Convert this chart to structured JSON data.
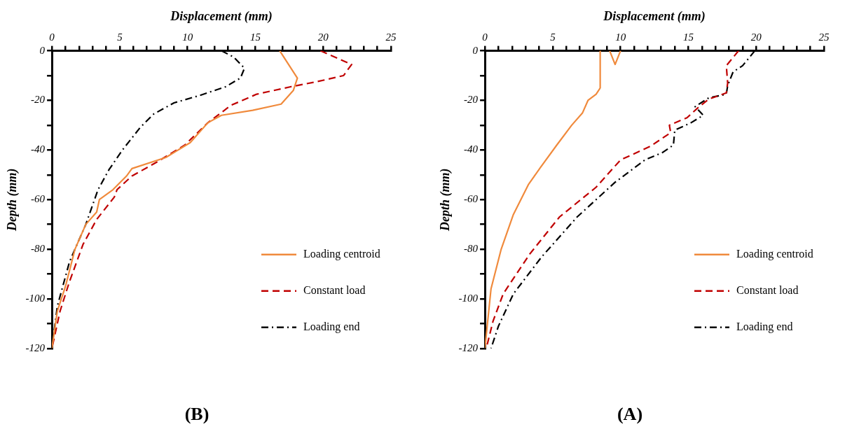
{
  "chart_data": [
    {
      "type": "line",
      "title": "(B)",
      "xlabel": "Displacement (mm)",
      "ylabel": "Depth (mm)",
      "xlim": [
        0,
        25
      ],
      "xticks": [
        0,
        {
          "value": 1,
          "label": null
        },
        {
          "value": 2,
          "label": null
        },
        {
          "value": 3,
          "label": null
        },
        {
          "value": 4,
          "label": null
        },
        5,
        {
          "value": 6,
          "label": null
        },
        {
          "value": 7,
          "label": null
        },
        {
          "value": 8,
          "label": null
        },
        {
          "value": 9,
          "label": null
        },
        10,
        {
          "value": 11,
          "label": null
        },
        {
          "value": 12,
          "label": null
        },
        {
          "value": 13,
          "label": null
        },
        {
          "value": 14,
          "label": null
        },
        15,
        {
          "value": 16,
          "label": null
        },
        {
          "value": 17,
          "label": null
        },
        {
          "value": 18,
          "label": null
        },
        {
          "value": 19,
          "label": null
        },
        20,
        {
          "value": 21,
          "label": null
        },
        {
          "value": 22,
          "label": null
        },
        {
          "value": 23,
          "label": null
        },
        {
          "value": 24,
          "label": null
        },
        25
      ],
      "ylim": [
        -120,
        0
      ],
      "yticks": [
        -120,
        {
          "value": -110,
          "label": null
        },
        -100,
        {
          "value": -90,
          "label": null
        },
        -80,
        {
          "value": -70,
          "label": null
        },
        -60,
        {
          "value": -50,
          "label": null
        },
        -40,
        {
          "value": -30,
          "label": null
        },
        -20,
        {
          "value": -10,
          "label": null
        },
        0
      ],
      "grid": false,
      "legend": "bottom right",
      "marker": "none",
      "series": [
        {
          "name": "Loading centroid",
          "color": "#f08a3c",
          "line_style": "solid",
          "x": [
            16.8,
            18.1,
            17.8,
            16.9,
            14.8,
            12.5,
            11.5,
            10.2,
            8.4,
            5.9,
            5.5,
            4.5,
            3.5,
            3.3,
            2.5,
            1.7,
            1.0,
            0.4,
            0
          ],
          "values": [
            0,
            -11,
            -16,
            -21.5,
            -24,
            -26,
            -29,
            -37,
            -43,
            -47.5,
            -50.5,
            -56,
            -60,
            -65,
            -70,
            -80,
            -95,
            -105,
            -120
          ]
        },
        {
          "name": "Constant load",
          "color": "#c00000",
          "line_style": "dashed",
          "x": [
            19.8,
            22.1,
            21.5,
            19.5,
            17.6,
            15.1,
            13.2,
            11.5,
            9.8,
            7.7,
            5.9,
            4.8,
            4.6,
            3.3,
            2.3,
            1.3,
            0.6,
            0
          ],
          "values": [
            0,
            -5.5,
            -10,
            -12.5,
            -14.5,
            -17.5,
            -22,
            -29,
            -38,
            -45,
            -50.5,
            -56,
            -59,
            -68,
            -78,
            -93,
            -105,
            -120
          ]
        },
        {
          "name": "Loading end",
          "color": "#000000",
          "line_style": "dashdot",
          "x": [
            12.5,
            13.4,
            14.2,
            13.9,
            12.8,
            10.9,
            9.0,
            7.5,
            6.5,
            5.2,
            4.2,
            3.4,
            2.5,
            1.3,
            0.4,
            0
          ],
          "values": [
            0,
            -2.5,
            -7,
            -11,
            -14.5,
            -18,
            -21,
            -25.5,
            -31,
            -40,
            -48,
            -56,
            -70,
            -85,
            -103,
            -120
          ]
        }
      ]
    },
    {
      "type": "line",
      "title": "(A)",
      "xlabel": "Displacement (mm)",
      "ylabel": "Depth (mm)",
      "xlim": [
        0,
        25
      ],
      "xticks": [
        0,
        {
          "value": 1,
          "label": null
        },
        {
          "value": 2,
          "label": null
        },
        {
          "value": 3,
          "label": null
        },
        {
          "value": 4,
          "label": null
        },
        5,
        {
          "value": 6,
          "label": null
        },
        {
          "value": 7,
          "label": null
        },
        {
          "value": 8,
          "label": null
        },
        {
          "value": 9,
          "label": null
        },
        10,
        {
          "value": 11,
          "label": null
        },
        {
          "value": 12,
          "label": null
        },
        {
          "value": 13,
          "label": null
        },
        {
          "value": 14,
          "label": null
        },
        15,
        {
          "value": 16,
          "label": null
        },
        {
          "value": 17,
          "label": null
        },
        {
          "value": 18,
          "label": null
        },
        {
          "value": 19,
          "label": null
        },
        20,
        {
          "value": 21,
          "label": null
        },
        {
          "value": 22,
          "label": null
        },
        {
          "value": 23,
          "label": null
        },
        {
          "value": 24,
          "label": null
        },
        25
      ],
      "ylim": [
        -120,
        0
      ],
      "yticks": [
        -120,
        {
          "value": -110,
          "label": null
        },
        -100,
        {
          "value": -90,
          "label": null
        },
        -80,
        {
          "value": -70,
          "label": null
        },
        -60,
        {
          "value": -50,
          "label": null
        },
        -40,
        {
          "value": -30,
          "label": null
        },
        -20,
        {
          "value": -10,
          "label": null
        },
        0
      ],
      "grid": false,
      "legend": "bottom right",
      "marker": "none",
      "series": [
        {
          "name": "Loading centroid",
          "color": "#f08a3c",
          "line_style": "solid",
          "x": [
            9.2,
            9.6,
            10.0,
            null,
            8.5,
            8.5,
            8.2,
            7.6,
            7.2,
            6.4,
            5.3,
            4.1,
            3.2,
            2.1,
            1.2,
            0.45,
            0
          ],
          "values": [
            0,
            -5.5,
            0,
            null,
            0,
            -15,
            -17.5,
            -20,
            -25,
            -30,
            -38,
            -47,
            -54,
            -66,
            -80,
            -96,
            -120
          ]
        },
        {
          "name": "Constant load",
          "color": "#c00000",
          "line_style": "dashed",
          "x": [
            18.7,
            17.8,
            17.9,
            17.8,
            16.5,
            15.7,
            14.9,
            13.6,
            13.7,
            12.2,
            10.0,
            8.2,
            5.5,
            3.3,
            1.35,
            0.6,
            0.1
          ],
          "values": [
            0,
            -6,
            -13,
            -17,
            -19.5,
            -23,
            -27,
            -30,
            -33,
            -38.5,
            -44,
            -55,
            -67,
            -82,
            -98,
            -109,
            -120
          ]
        },
        {
          "name": "Loading end",
          "color": "#000000",
          "line_style": "dashdot",
          "x": [
            19.9,
            19.0,
            18.3,
            17.9,
            17.8,
            16.5,
            15.5,
            16.1,
            15.2,
            14.0,
            13.9,
            13.1,
            11.8,
            9.6,
            6.8,
            4.2,
            2.1,
            1.0,
            0.45
          ],
          "values": [
            0,
            -6,
            -8.5,
            -14,
            -17.5,
            -19,
            -22.5,
            -26,
            -29,
            -32,
            -38,
            -41,
            -44,
            -53,
            -67,
            -83,
            -98,
            -111,
            -120
          ]
        }
      ]
    }
  ]
}
